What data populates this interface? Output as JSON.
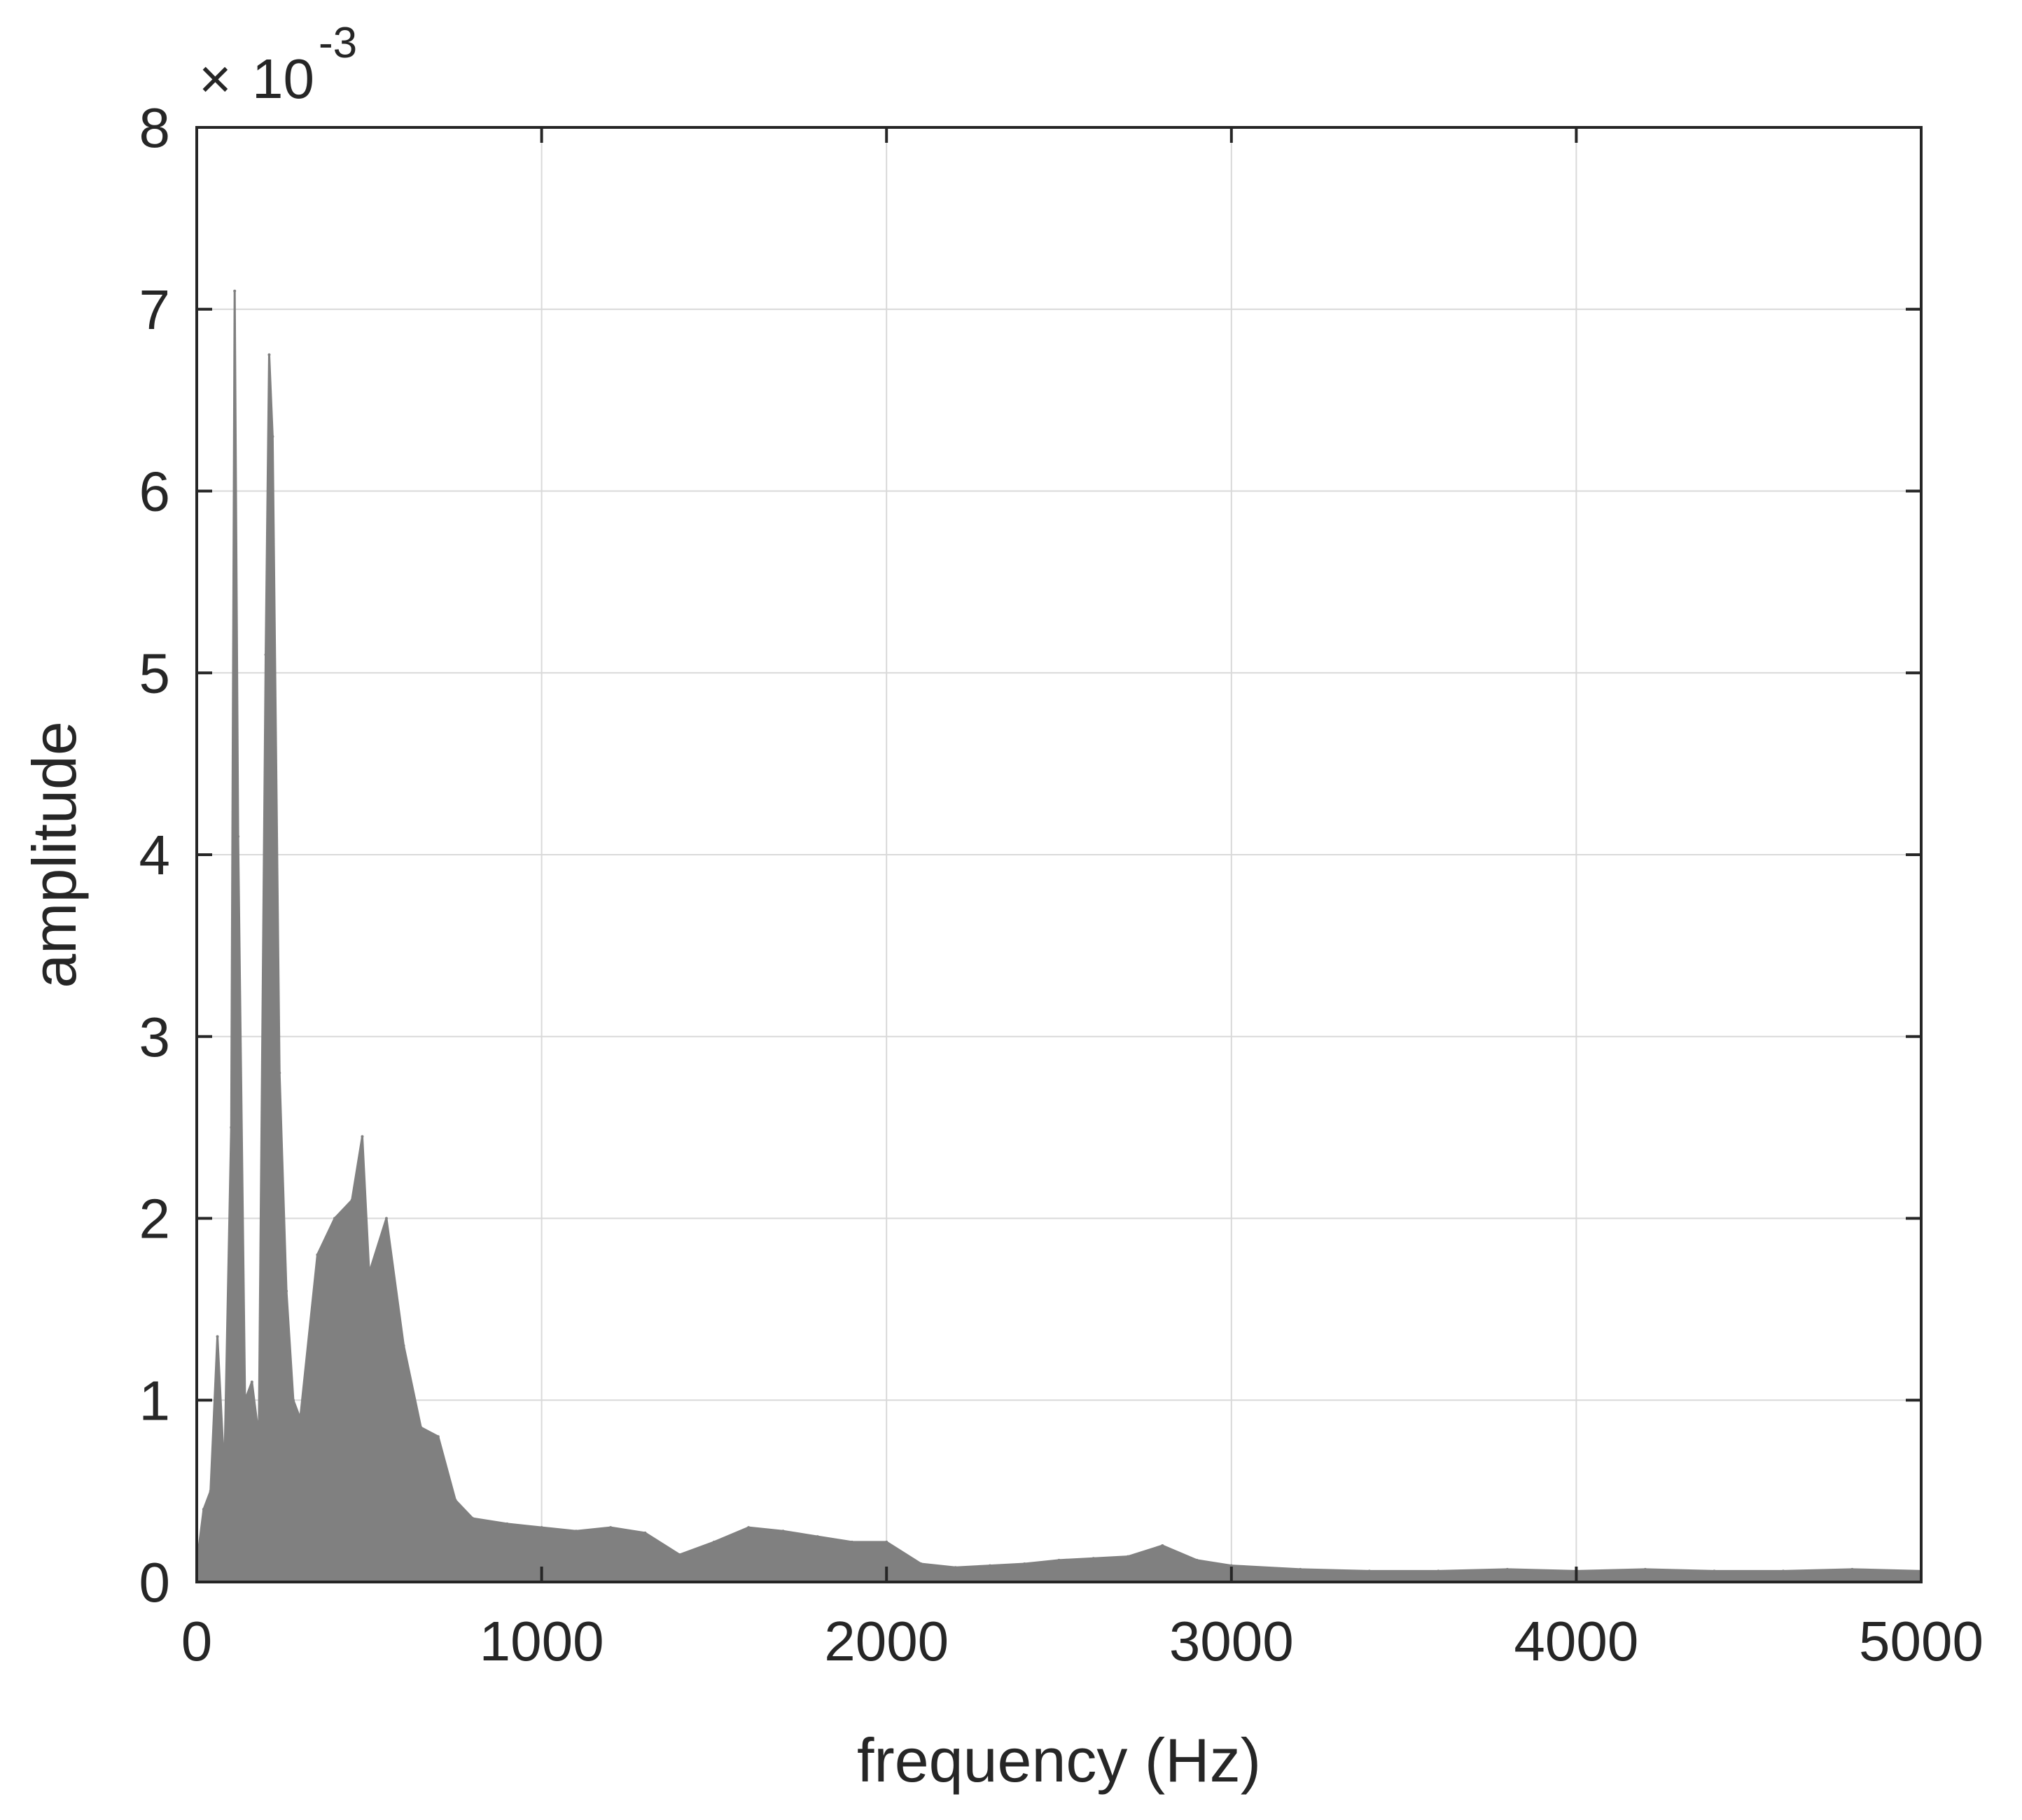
{
  "chart_data": {
    "type": "line",
    "title": "",
    "xlabel": "frequency (Hz)",
    "ylabel": "amplitude",
    "y_exponent": {
      "base": "10",
      "power": "-3",
      "prefix": "×"
    },
    "xlim": [
      0,
      5000
    ],
    "ylim": [
      0,
      8
    ],
    "x_ticks": [
      0,
      1000,
      2000,
      3000,
      4000,
      5000
    ],
    "x_tick_labels": [
      "0",
      "1000",
      "2000",
      "3000",
      "4000",
      "5000"
    ],
    "y_ticks": [
      0,
      1,
      2,
      3,
      4,
      5,
      6,
      7,
      8
    ],
    "y_tick_labels": [
      "0",
      "1",
      "2",
      "3",
      "4",
      "5",
      "6",
      "7",
      "8"
    ],
    "grid": true,
    "line_color": "#808080",
    "grid_color": "#d9d9d9",
    "series": [
      {
        "x": [
          0,
          20,
          40,
          60,
          80,
          100,
          110,
          120,
          140,
          160,
          180,
          200,
          210,
          220,
          240,
          260,
          280,
          300,
          350,
          400,
          450,
          480,
          500,
          550,
          600,
          650,
          700,
          750,
          800,
          900,
          1000,
          1100,
          1200,
          1300,
          1400,
          1500,
          1600,
          1700,
          1800,
          1900,
          2000,
          2100,
          2200,
          2300,
          2400,
          2500,
          2600,
          2700,
          2800,
          2900,
          3000,
          3200,
          3400,
          3600,
          3800,
          4000,
          4200,
          4400,
          4600,
          4800,
          5000
        ],
        "y": [
          0.1,
          0.4,
          0.5,
          1.35,
          0.6,
          2.5,
          7.1,
          4.1,
          1.0,
          1.1,
          0.8,
          5.1,
          6.75,
          6.3,
          2.8,
          1.6,
          1.0,
          0.9,
          1.8,
          2.0,
          2.1,
          2.45,
          1.7,
          2.0,
          1.3,
          0.85,
          0.8,
          0.45,
          0.35,
          0.32,
          0.3,
          0.28,
          0.3,
          0.27,
          0.15,
          0.22,
          0.3,
          0.28,
          0.25,
          0.22,
          0.22,
          0.1,
          0.08,
          0.09,
          0.1,
          0.12,
          0.13,
          0.14,
          0.2,
          0.12,
          0.09,
          0.07,
          0.06,
          0.06,
          0.07,
          0.06,
          0.07,
          0.06,
          0.06,
          0.07,
          0.06
        ]
      }
    ]
  }
}
